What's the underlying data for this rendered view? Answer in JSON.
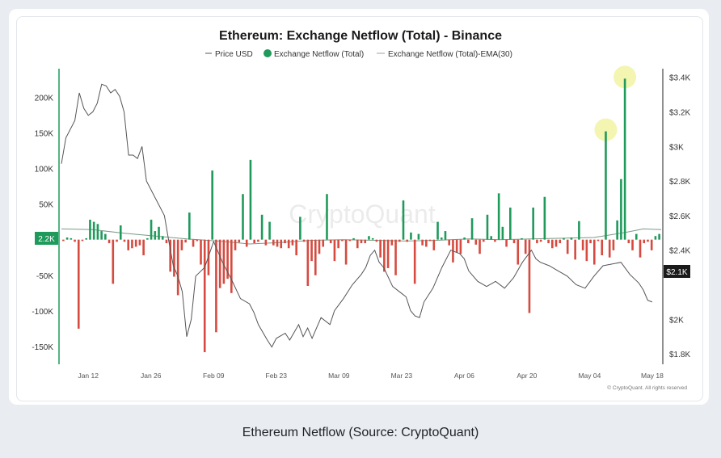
{
  "caption": "Ethereum Netflow (Source: CryptoQuant)",
  "chart_data": {
    "type": "bar",
    "title": "Ethereum: Exchange Netflow (Total) - Binance",
    "legend": {
      "placement": "top-center",
      "items": [
        {
          "label": "Price USD",
          "marker": "line",
          "color": "#444444"
        },
        {
          "label": "Exchange Netflow (Total)",
          "marker": "dot",
          "color": "#1f9a5b"
        },
        {
          "label": "Exchange Netflow (Total)-EMA(30)",
          "marker": "line",
          "color": "#9aa0a6"
        }
      ]
    },
    "watermark": "CryptoQuant",
    "copyright": "© CryptoQuant. All rights reserved",
    "x_ticks": [
      "Jan 12",
      "Jan 26",
      "Feb 09",
      "Feb 23",
      "Mar 09",
      "Mar 23",
      "Apr 06",
      "Apr 20",
      "May 04",
      "May 18"
    ],
    "x_tick_days": [
      7,
      21,
      35,
      49,
      63,
      77,
      91,
      105,
      119,
      133
    ],
    "x_range_days": [
      1,
      135
    ],
    "y_left": {
      "ticks": [
        200000,
        150000,
        100000,
        50000,
        -50000,
        -100000,
        -150000
      ],
      "tick_labels": [
        "200K",
        "150K",
        "100K",
        "50K",
        "-50K",
        "-100K",
        "-150K"
      ],
      "range": [
        -175000,
        240000
      ],
      "current_badge": "2.2K",
      "current_value": 2200
    },
    "y_right": {
      "ticks": [
        1800,
        2000,
        2400,
        2600,
        2800,
        3000,
        3200,
        3400
      ],
      "tick_labels": [
        "$1.8K",
        "$2K",
        "$2.4K",
        "$2.6K",
        "$2.8K",
        "$3K",
        "$3.2K",
        "$3.4K"
      ],
      "range": [
        1740,
        3450
      ],
      "current_badge": "$2.1K",
      "current_value": 2100
    },
    "grid": false,
    "netflow": [
      -2000,
      3000,
      2000,
      -3000,
      -125000,
      -2000,
      2000,
      28000,
      25000,
      22000,
      12000,
      8000,
      -5000,
      -62000,
      -3000,
      20000,
      -3000,
      -15000,
      -12000,
      -10000,
      -8000,
      -22000,
      2000,
      28000,
      12000,
      18000,
      5000,
      -5000,
      -45000,
      -52000,
      -78000,
      -15000,
      -4000,
      38000,
      -10000,
      -2000,
      -35000,
      -158000,
      -50000,
      97000,
      -130000,
      -68000,
      -62000,
      -55000,
      -75000,
      -15000,
      -4000,
      64000,
      -10000,
      112000,
      -5000,
      -3000,
      35000,
      -8000,
      25000,
      -8000,
      -10000,
      -12000,
      -5000,
      -12000,
      -8000,
      -22000,
      32000,
      -3000,
      -65000,
      -30000,
      -50000,
      -20000,
      -10000,
      64000,
      -5000,
      -30000,
      -12000,
      -2000,
      -35000,
      -2000,
      2000,
      -12000,
      -5000,
      -5000,
      5000,
      2000,
      -3000,
      -25000,
      -45000,
      -40000,
      -8000,
      -50000,
      -3000,
      55000,
      -3000,
      10000,
      -62000,
      8000,
      -8000,
      -10000,
      -2000,
      -15000,
      25000,
      3000,
      12000,
      -8000,
      -32000,
      -18000,
      -20000,
      3000,
      -5000,
      30000,
      -7000,
      -20000,
      -3000,
      35000,
      5000,
      -3000,
      65000,
      18000,
      -10000,
      45000,
      -5000,
      -35000,
      2000,
      -20000,
      -103000,
      45000,
      -5000,
      -3000,
      60000,
      -5000,
      -12000,
      -10000,
      -5000,
      2000,
      -20000,
      3000,
      -28000,
      26000,
      -15000,
      -30000,
      -5000,
      -35000,
      -2000,
      -22000,
      152000,
      -25000,
      -15000,
      27000,
      85000,
      226000,
      -5000,
      -15000,
      8000,
      -25000,
      -5000,
      -3000,
      -15000,
      5000,
      8000
    ],
    "netflow_ema30": [
      [
        1,
        15000
      ],
      [
        8,
        14000
      ],
      [
        15,
        9000
      ],
      [
        22,
        5000
      ],
      [
        29,
        1000
      ],
      [
        36,
        -2000
      ],
      [
        43,
        -6000
      ],
      [
        50,
        -4000
      ],
      [
        57,
        -1000
      ],
      [
        64,
        0
      ],
      [
        71,
        -1000
      ],
      [
        78,
        -2000
      ],
      [
        85,
        -1000
      ],
      [
        92,
        1000
      ],
      [
        99,
        0
      ],
      [
        106,
        1000
      ],
      [
        113,
        2000
      ],
      [
        120,
        3000
      ],
      [
        127,
        10000
      ],
      [
        131,
        15000
      ],
      [
        135,
        14000
      ]
    ],
    "price_usd": [
      [
        1,
        2900
      ],
      [
        2,
        3050
      ],
      [
        4,
        3150
      ],
      [
        5,
        3310
      ],
      [
        6,
        3220
      ],
      [
        7,
        3180
      ],
      [
        8,
        3200
      ],
      [
        9,
        3250
      ],
      [
        10,
        3360
      ],
      [
        11,
        3350
      ],
      [
        12,
        3310
      ],
      [
        13,
        3330
      ],
      [
        14,
        3290
      ],
      [
        15,
        3200
      ],
      [
        16,
        2950
      ],
      [
        17,
        2950
      ],
      [
        18,
        2930
      ],
      [
        19,
        3000
      ],
      [
        20,
        2800
      ],
      [
        22,
        2700
      ],
      [
        24,
        2600
      ],
      [
        25,
        2450
      ],
      [
        26,
        2310
      ],
      [
        27,
        2250
      ],
      [
        28,
        2160
      ],
      [
        29,
        1900
      ],
      [
        30,
        2000
      ],
      [
        31,
        2250
      ],
      [
        33,
        2300
      ],
      [
        35,
        2450
      ],
      [
        37,
        2330
      ],
      [
        39,
        2230
      ],
      [
        41,
        2120
      ],
      [
        43,
        2090
      ],
      [
        44,
        2040
      ],
      [
        45,
        1970
      ],
      [
        47,
        1880
      ],
      [
        48,
        1840
      ],
      [
        49,
        1890
      ],
      [
        51,
        1920
      ],
      [
        52,
        1880
      ],
      [
        54,
        1970
      ],
      [
        55,
        1900
      ],
      [
        56,
        1950
      ],
      [
        57,
        1890
      ],
      [
        58,
        1950
      ],
      [
        59,
        2010
      ],
      [
        61,
        1970
      ],
      [
        62,
        2050
      ],
      [
        64,
        2120
      ],
      [
        66,
        2200
      ],
      [
        68,
        2260
      ],
      [
        69,
        2300
      ],
      [
        70,
        2370
      ],
      [
        71,
        2400
      ],
      [
        72,
        2330
      ],
      [
        73,
        2300
      ],
      [
        75,
        2190
      ],
      [
        77,
        2150
      ],
      [
        78,
        2130
      ],
      [
        79,
        2050
      ],
      [
        80,
        2020
      ],
      [
        81,
        2010
      ],
      [
        82,
        2100
      ],
      [
        84,
        2180
      ],
      [
        86,
        2300
      ],
      [
        88,
        2400
      ],
      [
        90,
        2380
      ],
      [
        91,
        2350
      ],
      [
        92,
        2280
      ],
      [
        94,
        2220
      ],
      [
        96,
        2190
      ],
      [
        98,
        2220
      ],
      [
        100,
        2180
      ],
      [
        102,
        2240
      ],
      [
        104,
        2330
      ],
      [
        106,
        2400
      ],
      [
        107,
        2350
      ],
      [
        108,
        2330
      ],
      [
        110,
        2310
      ],
      [
        112,
        2280
      ],
      [
        114,
        2250
      ],
      [
        116,
        2200
      ],
      [
        118,
        2180
      ],
      [
        120,
        2250
      ],
      [
        122,
        2310
      ],
      [
        124,
        2320
      ],
      [
        126,
        2330
      ],
      [
        128,
        2260
      ],
      [
        130,
        2210
      ],
      [
        131,
        2170
      ],
      [
        132,
        2110
      ],
      [
        133,
        2100
      ]
    ],
    "highlights": [
      {
        "bar_index": 142,
        "value": 152000
      },
      {
        "bar_index": 147,
        "value": 226000
      }
    ],
    "colors": {
      "positive": "#1f9a5b",
      "negative": "#d64a3f",
      "price": "#555555",
      "ema": "#7a9a86",
      "highlight": "#f3f5b0",
      "left_axis": "#1f9a5b",
      "right_axis": "#222222"
    }
  }
}
